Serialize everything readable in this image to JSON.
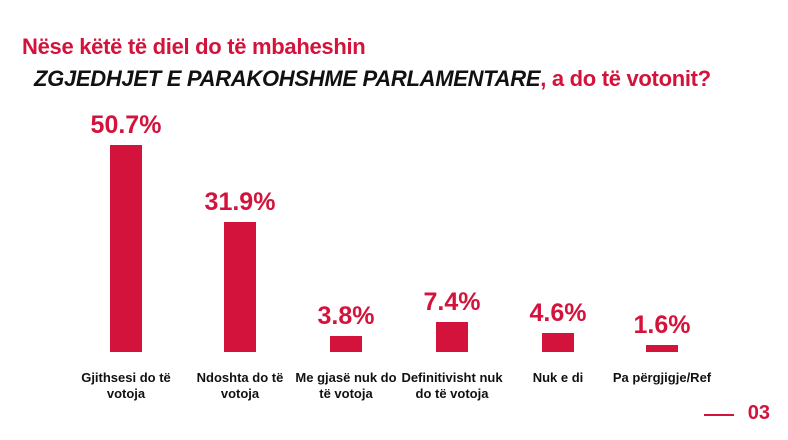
{
  "chart_data": {
    "type": "bar",
    "title": "Nëse këtë të diel do të mbaheshin",
    "title_emphasis": "ZGJEDHJET E PARAKOHSHME PARLAMENTARE",
    "title_end": ", a do të votonit?",
    "categories": [
      "Gjithsesi do të votoja",
      "Ndoshta do të votoja",
      "Me gjasë nuk do të votoja",
      "Definitivisht nuk do të votoja",
      "Nuk e di",
      "Pa përgjigje/Ref"
    ],
    "values": [
      50.7,
      31.9,
      3.8,
      7.4,
      4.6,
      1.6
    ],
    "value_labels": [
      "50.7%",
      "31.9%",
      "3.8%",
      "7.4%",
      "4.6%",
      "1.6%"
    ],
    "color": "#d3133b"
  },
  "page_number": "03"
}
